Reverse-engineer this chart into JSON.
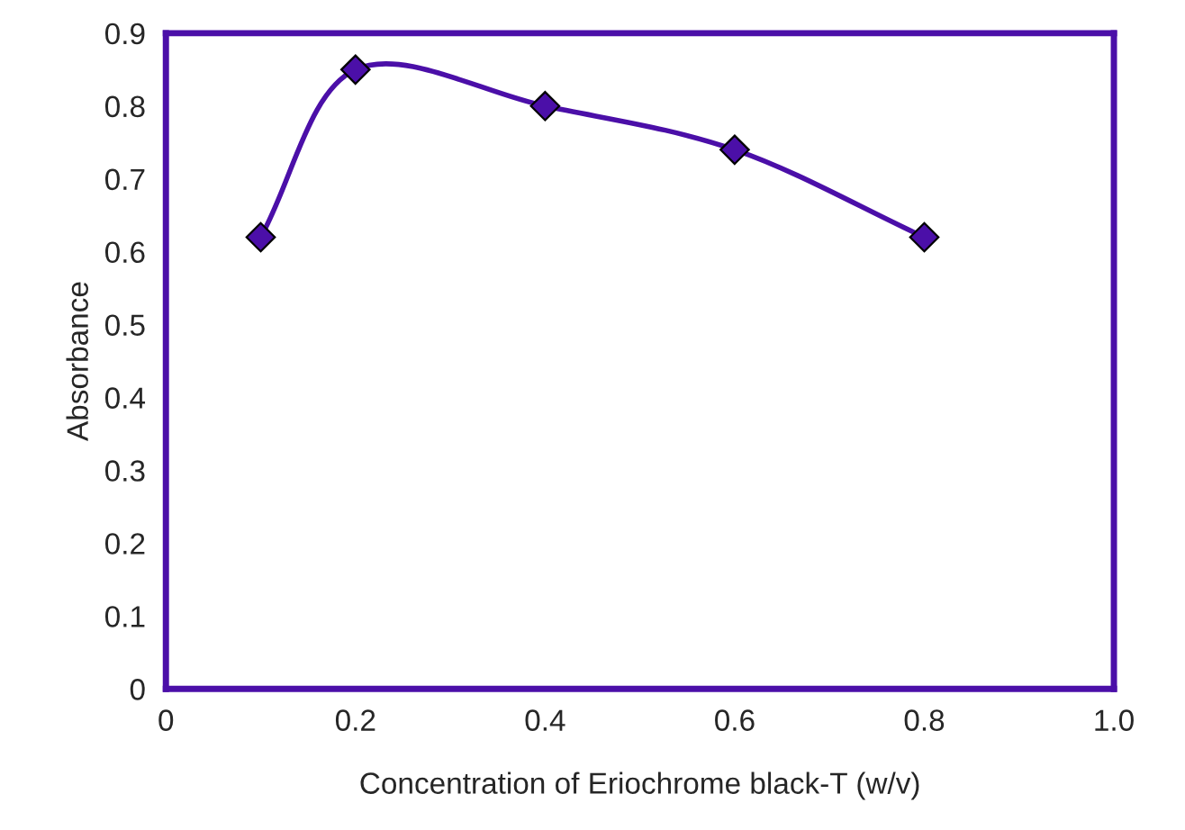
{
  "chart_data": {
    "type": "line",
    "xlabel": "Concentration of Eriochrome black-T (w/v)",
    "ylabel": "Absorbance",
    "x": [
      0.1,
      0.2,
      0.4,
      0.6,
      0.8
    ],
    "series": [
      {
        "color": "#4b0fa8",
        "values": [
          0.62,
          0.85,
          0.8,
          0.74,
          0.62
        ]
      }
    ],
    "xlim": [
      0,
      1.0
    ],
    "xticks": [
      0,
      0.2,
      0.4,
      0.6,
      0.8,
      {
        "value": 1.0,
        "label": "1.0"
      }
    ],
    "ylim": [
      0,
      0.9
    ],
    "yticks": [
      0,
      0.1,
      0.2,
      0.3,
      0.4,
      0.5,
      0.6,
      0.7,
      0.8,
      0.9
    ],
    "marker": "diamond",
    "line_style": "solid",
    "grid": false,
    "legend": false
  }
}
